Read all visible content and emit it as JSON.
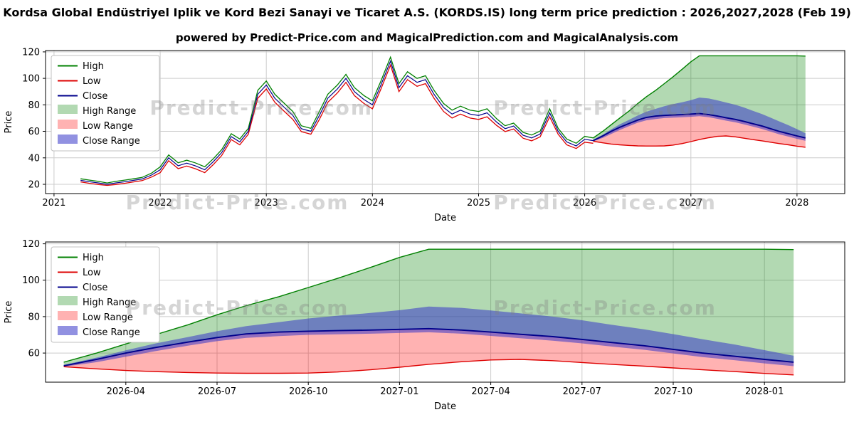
{
  "page": {
    "title": "Kordsa Global Endüstriyel Iplik ve Kord Bezi Sanayi ve Ticaret A.S. (KORDS.IS) long term price prediction : 2026,2027,2028 (Feb 19)",
    "subtitle": "powered by Predict-Price.com and MagicalPrediction.com and MagicalAnalysis.com",
    "watermark_text": "Predict-Price.com"
  },
  "colors": {
    "high": "#008000",
    "low": "#dd0000",
    "close": "#00008b",
    "high_range": "rgba(0,128,0,0.3)",
    "low_range": "rgba(255,0,0,0.3)",
    "close_range": "rgba(55,55,200,0.55)",
    "grid": "#cccccc",
    "watermark": "rgba(128,128,128,0.33)"
  },
  "legend": [
    {
      "label": "High",
      "type": "line",
      "color": "high"
    },
    {
      "label": "Low",
      "type": "line",
      "color": "low"
    },
    {
      "label": "Close",
      "type": "line",
      "color": "close"
    },
    {
      "label": "High Range",
      "type": "patch",
      "color": "high_range"
    },
    {
      "label": "Low Range",
      "type": "patch",
      "color": "low_range"
    },
    {
      "label": "Close Range",
      "type": "patch",
      "color": "close_range"
    }
  ],
  "chart_data": {
    "type": "line",
    "title": "Kordsa Global Endüstriyel Iplik ve Kord Bezi Sanayi ve Ticaret A.S. (KORDS.IS) long term price prediction : 2026,2027,2028 (Feb 19)",
    "xlabel": "Date",
    "ylabel": "Price",
    "historical": {
      "x": [
        2021.25,
        2021.33,
        2021.42,
        2021.5,
        2021.58,
        2021.67,
        2021.75,
        2021.83,
        2021.92,
        2022.0,
        2022.08,
        2022.17,
        2022.25,
        2022.33,
        2022.42,
        2022.5,
        2022.58,
        2022.67,
        2022.75,
        2022.83,
        2022.92,
        2023.0,
        2023.08,
        2023.17,
        2023.25,
        2023.33,
        2023.42,
        2023.5,
        2023.58,
        2023.67,
        2023.75,
        2023.83,
        2023.92,
        2024.0,
        2024.08,
        2024.17,
        2024.25,
        2024.33,
        2024.42,
        2024.5,
        2024.58,
        2024.67,
        2024.75,
        2024.83,
        2024.92,
        2025.0,
        2025.08,
        2025.17,
        2025.25,
        2025.33,
        2025.42,
        2025.5,
        2025.58,
        2025.67,
        2025.75,
        2025.83,
        2025.92,
        2026.0,
        2026.08
      ],
      "close": [
        23,
        22,
        21,
        20,
        21,
        22,
        23,
        24,
        27,
        31,
        40,
        34,
        36,
        34,
        31,
        37,
        44,
        56,
        52,
        60,
        88,
        95,
        85,
        78,
        72,
        62,
        60,
        72,
        85,
        92,
        100,
        90,
        84,
        80,
        95,
        113,
        93,
        102,
        97,
        99,
        88,
        78,
        73,
        76,
        73,
        72,
        74,
        67,
        62,
        64,
        57,
        55,
        58,
        74,
        60,
        52,
        49,
        54,
        53
      ],
      "high": [
        24.2,
        23.2,
        22.2,
        21,
        22.2,
        23.2,
        24.2,
        25.2,
        28.5,
        33.2,
        42.2,
        36.2,
        38.2,
        36.2,
        33.2,
        39.2,
        46.2,
        58.2,
        54.2,
        62.2,
        91,
        98,
        88,
        81,
        75,
        64.2,
        62.2,
        75,
        88,
        95,
        103,
        93,
        87,
        83,
        98,
        116,
        96,
        105,
        100,
        102,
        91,
        81,
        76,
        79,
        76,
        75,
        77,
        69.5,
        64.2,
        66.2,
        59.2,
        57.2,
        60.2,
        77,
        62.2,
        54.2,
        51,
        56.2,
        55
      ],
      "low": [
        21.8,
        20.8,
        19.8,
        19.2,
        19.8,
        20.8,
        21.8,
        22.8,
        25.5,
        28.8,
        37.8,
        31.8,
        33.8,
        31.8,
        28.8,
        34.8,
        41.8,
        53.8,
        49.8,
        57.8,
        85,
        92,
        82,
        75,
        69,
        59.8,
        57.8,
        69,
        82,
        89,
        97,
        87,
        81,
        77,
        92,
        110,
        90,
        99,
        94,
        96,
        85,
        75,
        70,
        73,
        70,
        69,
        71,
        64.5,
        59.8,
        61.8,
        54.8,
        52.8,
        55.8,
        71,
        57.8,
        49.8,
        47,
        51.8,
        51
      ]
    },
    "prediction": {
      "x": [
        2026.08,
        2026.17,
        2026.25,
        2026.33,
        2026.42,
        2026.5,
        2026.58,
        2026.67,
        2026.75,
        2026.83,
        2026.92,
        2027.0,
        2027.08,
        2027.17,
        2027.25,
        2027.33,
        2027.42,
        2027.5,
        2027.58,
        2027.67,
        2027.75,
        2027.83,
        2027.92,
        2028.0,
        2028.08
      ],
      "close": [
        53,
        56.5,
        60,
        63,
        66,
        68.5,
        70.5,
        71.5,
        72,
        72.3,
        72.6,
        73,
        73.4,
        72.6,
        71.5,
        70.3,
        69,
        67.5,
        65.8,
        64,
        62,
        60,
        58.2,
        56.5,
        55
      ],
      "high": [
        55,
        60,
        65,
        70,
        75.5,
        81,
        86,
        91,
        96,
        101,
        107,
        112.5,
        117,
        117,
        117,
        117,
        117,
        117,
        117,
        117,
        117,
        117,
        117,
        117,
        116.8
      ],
      "low": [
        52.5,
        51.3,
        50.4,
        49.8,
        49.3,
        49,
        48.9,
        48.9,
        49,
        49.6,
        50.8,
        52.2,
        53.8,
        55.2,
        56.2,
        56.5,
        55.8,
        54.8,
        53.8,
        52.8,
        51.8,
        50.8,
        49.8,
        48.8,
        48
      ],
      "close_upper": [
        53.5,
        57.5,
        61.5,
        65.2,
        68.8,
        72,
        74.8,
        77,
        79,
        80.5,
        82,
        83.5,
        85.5,
        84.8,
        83.4,
        81.8,
        80,
        78,
        75.6,
        73,
        70.4,
        67.6,
        64.6,
        61.6,
        58.5
      ],
      "close_lower": [
        52.5,
        55,
        58,
        61,
        64,
        66.5,
        68.3,
        69.3,
        70,
        70.3,
        70.6,
        71,
        71.4,
        70.6,
        69.4,
        68.1,
        66.8,
        65.3,
        63.6,
        61.8,
        59.8,
        57.8,
        56,
        54.3,
        52.8
      ]
    },
    "charts": [
      {
        "name": "overview",
        "xlim": [
          2020.92,
          2028.45
        ],
        "ylim": [
          13,
          121
        ],
        "xticks": [
          2021,
          2022,
          2023,
          2024,
          2025,
          2026,
          2027,
          2028
        ],
        "xtick_labels": [
          "2021",
          "2022",
          "2023",
          "2024",
          "2025",
          "2026",
          "2027",
          "2028"
        ],
        "yticks": [
          20,
          40,
          60,
          80,
          100,
          120
        ],
        "include_historical": true
      },
      {
        "name": "prediction-zoom",
        "xlim": [
          2026.03,
          2028.22
        ],
        "ylim": [
          44,
          121
        ],
        "xticks": [
          2026.25,
          2026.5,
          2026.75,
          2027.0,
          2027.25,
          2027.5,
          2027.75,
          2028.0
        ],
        "xtick_labels": [
          "2026-04",
          "2026-07",
          "2026-10",
          "2027-01",
          "2027-04",
          "2027-07",
          "2027-10",
          "2028-01"
        ],
        "yticks": [
          60,
          80,
          100,
          120
        ],
        "include_historical": false
      }
    ]
  }
}
